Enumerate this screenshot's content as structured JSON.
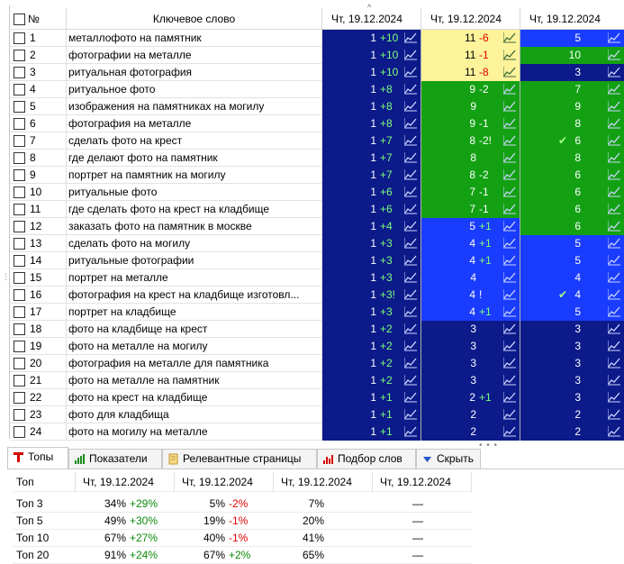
{
  "grid": {
    "header": {
      "num": "№",
      "keyword": "Ключевое слово",
      "dates": [
        "Чт, 19.12.2024",
        "Чт, 19.12.2024",
        "Чт, 19.12.2024"
      ],
      "sort_indicator": "^"
    },
    "rows": [
      {
        "n": "1",
        "kw": "металлофото на памятник",
        "c": [
          {
            "v": "1",
            "d": "+10",
            "bg": "navy"
          },
          {
            "v": "11",
            "d": "-6",
            "bg": "yellow"
          },
          {
            "v": "5",
            "d": "",
            "bg": "blue"
          }
        ]
      },
      {
        "n": "2",
        "kw": "фотографии на металле",
        "c": [
          {
            "v": "1",
            "d": "+10",
            "bg": "navy"
          },
          {
            "v": "11",
            "d": "-1",
            "bg": "yellow"
          },
          {
            "v": "10",
            "d": "",
            "bg": "green"
          }
        ]
      },
      {
        "n": "3",
        "kw": "ритуальная фотография",
        "c": [
          {
            "v": "1",
            "d": "+10",
            "bg": "navy"
          },
          {
            "v": "11",
            "d": "-8",
            "bg": "yellow"
          },
          {
            "v": "3",
            "d": "",
            "bg": "navy"
          }
        ]
      },
      {
        "n": "4",
        "kw": "ритуальное фото",
        "c": [
          {
            "v": "1",
            "d": "+8",
            "bg": "navy"
          },
          {
            "v": "9",
            "d": "-2",
            "bg": "green"
          },
          {
            "v": "7",
            "d": "",
            "bg": "green"
          }
        ]
      },
      {
        "n": "5",
        "kw": "изображения на памятниках на могилу",
        "c": [
          {
            "v": "1",
            "d": "+8",
            "bg": "navy"
          },
          {
            "v": "9",
            "d": "",
            "bg": "green"
          },
          {
            "v": "9",
            "d": "",
            "bg": "green"
          }
        ]
      },
      {
        "n": "6",
        "kw": "фотография на металле",
        "c": [
          {
            "v": "1",
            "d": "+8",
            "bg": "navy"
          },
          {
            "v": "9",
            "d": "-1",
            "bg": "green"
          },
          {
            "v": "8",
            "d": "",
            "bg": "green"
          }
        ]
      },
      {
        "n": "7",
        "kw": "сделать фото на крест",
        "c": [
          {
            "v": "1",
            "d": "+7",
            "bg": "navy"
          },
          {
            "v": "8",
            "d": "-2!",
            "bg": "green"
          },
          {
            "v": "6",
            "d": "",
            "bg": "green",
            "check": true
          }
        ]
      },
      {
        "n": "8",
        "kw": "где делают фото на памятник",
        "c": [
          {
            "v": "1",
            "d": "+7",
            "bg": "navy"
          },
          {
            "v": "8",
            "d": "",
            "bg": "green"
          },
          {
            "v": "8",
            "d": "",
            "bg": "green"
          }
        ]
      },
      {
        "n": "9",
        "kw": "портрет на памятник на могилу",
        "c": [
          {
            "v": "1",
            "d": "+7",
            "bg": "navy"
          },
          {
            "v": "8",
            "d": "-2",
            "bg": "green"
          },
          {
            "v": "6",
            "d": "",
            "bg": "green"
          }
        ]
      },
      {
        "n": "10",
        "kw": "ритуальные фото",
        "c": [
          {
            "v": "1",
            "d": "+6",
            "bg": "navy"
          },
          {
            "v": "7",
            "d": "-1",
            "bg": "green"
          },
          {
            "v": "6",
            "d": "",
            "bg": "green"
          }
        ]
      },
      {
        "n": "11",
        "kw": "где сделать фото на крест на кладбище",
        "c": [
          {
            "v": "1",
            "d": "+6",
            "bg": "navy"
          },
          {
            "v": "7",
            "d": "-1",
            "bg": "green"
          },
          {
            "v": "6",
            "d": "",
            "bg": "green"
          }
        ]
      },
      {
        "n": "12",
        "kw": "заказать фото на памятник в москве",
        "c": [
          {
            "v": "1",
            "d": "+4",
            "bg": "navy"
          },
          {
            "v": "5",
            "d": "+1",
            "bg": "blue"
          },
          {
            "v": "6",
            "d": "",
            "bg": "green"
          }
        ]
      },
      {
        "n": "13",
        "kw": "сделать фото на могилу",
        "c": [
          {
            "v": "1",
            "d": "+3",
            "bg": "navy"
          },
          {
            "v": "4",
            "d": "+1",
            "bg": "blue"
          },
          {
            "v": "5",
            "d": "",
            "bg": "blue"
          }
        ]
      },
      {
        "n": "14",
        "kw": "ритуальные фотографии",
        "c": [
          {
            "v": "1",
            "d": "+3",
            "bg": "navy"
          },
          {
            "v": "4",
            "d": "+1",
            "bg": "blue"
          },
          {
            "v": "5",
            "d": "",
            "bg": "blue"
          }
        ]
      },
      {
        "n": "15",
        "kw": "портрет на металле",
        "c": [
          {
            "v": "1",
            "d": "+3",
            "bg": "navy"
          },
          {
            "v": "4",
            "d": "",
            "bg": "blue"
          },
          {
            "v": "4",
            "d": "",
            "bg": "blue"
          }
        ]
      },
      {
        "n": "16",
        "kw": "фотография на крест на кладбище изготовл...",
        "c": [
          {
            "v": "1",
            "d": "+3!",
            "bg": "navy"
          },
          {
            "v": "4",
            "d": "!",
            "bg": "blue"
          },
          {
            "v": "4",
            "d": "",
            "bg": "blue",
            "check": true
          }
        ]
      },
      {
        "n": "17",
        "kw": "портрет на кладбище",
        "c": [
          {
            "v": "1",
            "d": "+3",
            "bg": "navy"
          },
          {
            "v": "4",
            "d": "+1",
            "bg": "blue"
          },
          {
            "v": "5",
            "d": "",
            "bg": "blue"
          }
        ]
      },
      {
        "n": "18",
        "kw": "фото на кладбище на крест",
        "c": [
          {
            "v": "1",
            "d": "+2",
            "bg": "navy"
          },
          {
            "v": "3",
            "d": "",
            "bg": "navy"
          },
          {
            "v": "3",
            "d": "",
            "bg": "navy"
          }
        ]
      },
      {
        "n": "19",
        "kw": "фото на металле на могилу",
        "c": [
          {
            "v": "1",
            "d": "+2",
            "bg": "navy"
          },
          {
            "v": "3",
            "d": "",
            "bg": "navy"
          },
          {
            "v": "3",
            "d": "",
            "bg": "navy"
          }
        ]
      },
      {
        "n": "20",
        "kw": "фотография на металле для памятника",
        "c": [
          {
            "v": "1",
            "d": "+2",
            "bg": "navy"
          },
          {
            "v": "3",
            "d": "",
            "bg": "navy"
          },
          {
            "v": "3",
            "d": "",
            "bg": "navy"
          }
        ]
      },
      {
        "n": "21",
        "kw": "фото на металле на памятник",
        "c": [
          {
            "v": "1",
            "d": "+2",
            "bg": "navy"
          },
          {
            "v": "3",
            "d": "",
            "bg": "navy"
          },
          {
            "v": "3",
            "d": "",
            "bg": "navy"
          }
        ]
      },
      {
        "n": "22",
        "kw": "фото на крест на кладбище",
        "c": [
          {
            "v": "1",
            "d": "+1",
            "bg": "navy"
          },
          {
            "v": "2",
            "d": "+1",
            "bg": "navy"
          },
          {
            "v": "3",
            "d": "",
            "bg": "navy"
          }
        ]
      },
      {
        "n": "23",
        "kw": "фото для кладбища",
        "c": [
          {
            "v": "1",
            "d": "+1",
            "bg": "navy"
          },
          {
            "v": "2",
            "d": "",
            "bg": "navy"
          },
          {
            "v": "2",
            "d": "",
            "bg": "navy"
          }
        ]
      },
      {
        "n": "24",
        "kw": "фото на могилу на металле",
        "c": [
          {
            "v": "1",
            "d": "+1",
            "bg": "navy"
          },
          {
            "v": "2",
            "d": "",
            "bg": "navy"
          },
          {
            "v": "2",
            "d": "",
            "bg": "navy"
          }
        ]
      }
    ],
    "check_glyph": "✔",
    "colors": {
      "navy": "#0c1a8a",
      "blue": "#1a3cff",
      "green": "#13a113",
      "yellow": "#fdf39a"
    }
  },
  "tabs": [
    {
      "label": "Топы",
      "icon": "top-t-icon",
      "active": true
    },
    {
      "label": "Показатели",
      "icon": "bar-chart-icon",
      "active": false
    },
    {
      "label": "Релевантные страницы",
      "icon": "document-icon",
      "active": false
    },
    {
      "label": "Подбор слов",
      "icon": "bar-chart-red-icon",
      "active": false
    },
    {
      "label": "Скрыть",
      "icon": "triangle-down-icon",
      "active": false
    }
  ],
  "stats": {
    "header": [
      "Топ",
      "Чт, 19.12.2024",
      "Чт, 19.12.2024",
      "Чт, 19.12.2024",
      "Чт, 19.12.2024"
    ],
    "rows": [
      {
        "label": "Топ 3",
        "cells": [
          {
            "v": "34%",
            "d": "+29%",
            "s": "pos"
          },
          {
            "v": "5%",
            "d": "-2%",
            "s": "neg"
          },
          {
            "v": "7%",
            "d": "",
            "s": ""
          },
          {
            "v": "—",
            "d": "",
            "s": ""
          }
        ]
      },
      {
        "label": "Топ 5",
        "cells": [
          {
            "v": "49%",
            "d": "+30%",
            "s": "pos"
          },
          {
            "v": "19%",
            "d": "-1%",
            "s": "neg"
          },
          {
            "v": "20%",
            "d": "",
            "s": ""
          },
          {
            "v": "—",
            "d": "",
            "s": ""
          }
        ]
      },
      {
        "label": "Топ 10",
        "cells": [
          {
            "v": "67%",
            "d": "+27%",
            "s": "pos"
          },
          {
            "v": "40%",
            "d": "-1%",
            "s": "neg"
          },
          {
            "v": "41%",
            "d": "",
            "s": ""
          },
          {
            "v": "—",
            "d": "",
            "s": ""
          }
        ]
      },
      {
        "label": "Топ 20",
        "cells": [
          {
            "v": "91%",
            "d": "+24%",
            "s": "pos"
          },
          {
            "v": "67%",
            "d": "+2%",
            "s": "pos"
          },
          {
            "v": "65%",
            "d": "",
            "s": ""
          },
          {
            "v": "—",
            "d": "",
            "s": ""
          }
        ]
      }
    ]
  }
}
